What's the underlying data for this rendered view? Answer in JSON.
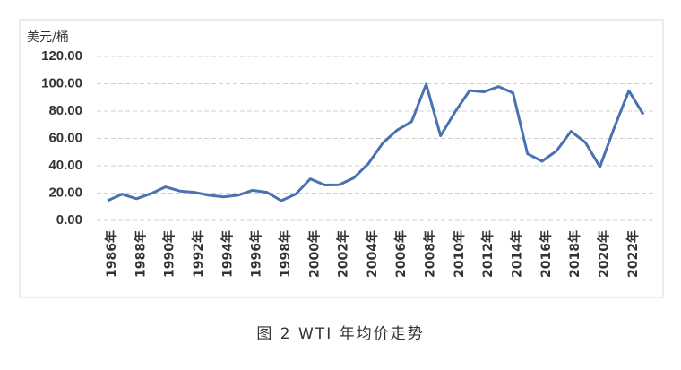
{
  "chart_data": {
    "type": "line",
    "title": "图 2  WTI 年均价走势",
    "ylabel": "美元/桶",
    "categories": [
      "1986年",
      null,
      "1988年",
      null,
      "1990年",
      null,
      "1992年",
      null,
      "1994年",
      null,
      "1996年",
      null,
      "1998年",
      null,
      "2000年",
      null,
      "2002年",
      null,
      "2004年",
      null,
      "2006年",
      null,
      "2008年",
      null,
      "2010年",
      null,
      "2012年",
      null,
      "2014年",
      null,
      "2016年",
      null,
      "2018年",
      null,
      "2020年",
      null,
      "2022年",
      null
    ],
    "series": [
      {
        "name": "WTI",
        "color": "#4a72b0",
        "values": [
          14.4,
          19.2,
          15.9,
          19.6,
          24.5,
          21.5,
          20.6,
          18.4,
          17.2,
          18.4,
          22.0,
          20.6,
          14.4,
          19.3,
          30.4,
          25.9,
          26.1,
          31.1,
          41.4,
          56.5,
          66.0,
          72.3,
          99.7,
          61.9,
          79.5,
          95.0,
          94.1,
          98.0,
          93.3,
          48.7,
          43.3,
          50.8,
          65.2,
          57.0,
          39.2,
          68.1,
          94.9,
          77.6
        ]
      }
    ],
    "ylim": [
      0,
      120
    ],
    "yticks": [
      {
        "value": 0,
        "label": "0.00"
      },
      {
        "value": 20,
        "label": "20.00"
      },
      {
        "value": 40,
        "label": "40.00"
      },
      {
        "value": 60,
        "label": "60.00"
      },
      {
        "value": 80,
        "label": "80.00"
      },
      {
        "value": 100,
        "label": "100.00"
      },
      {
        "value": 120,
        "label": "120.00"
      }
    ],
    "grid": true
  }
}
